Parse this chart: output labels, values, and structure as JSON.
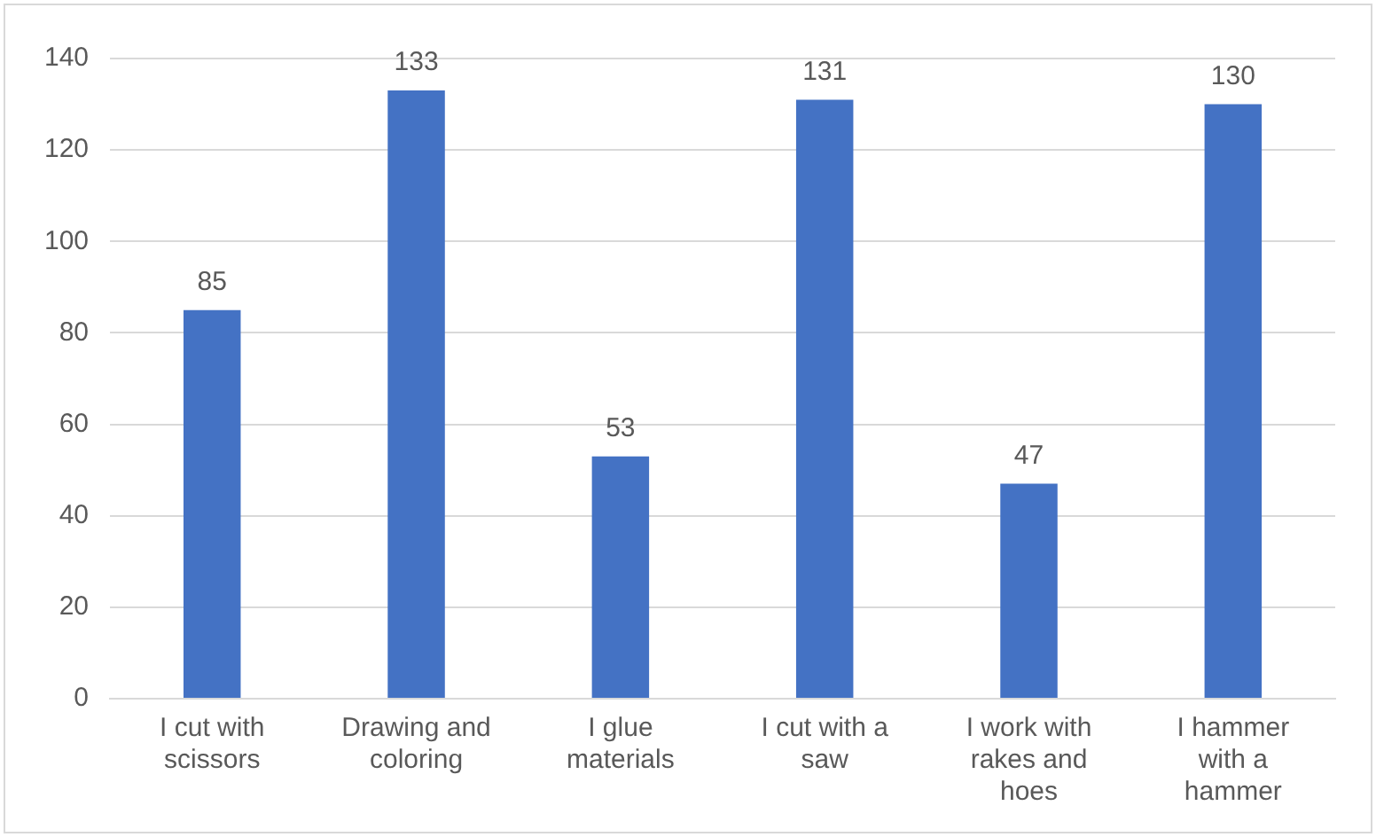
{
  "chart_data": {
    "type": "bar",
    "categories": [
      "I cut with scissors",
      "Drawing and coloring",
      "I glue materials",
      "I cut with a saw",
      "I work with rakes and hoes",
      "I hammer with a hammer"
    ],
    "values": [
      85,
      133,
      53,
      131,
      47,
      130
    ],
    "color": "#4472c4",
    "ylim": [
      0,
      140
    ],
    "yticks": [
      0,
      20,
      40,
      60,
      80,
      100,
      120,
      140
    ],
    "grid": "y",
    "data_labels": true
  }
}
